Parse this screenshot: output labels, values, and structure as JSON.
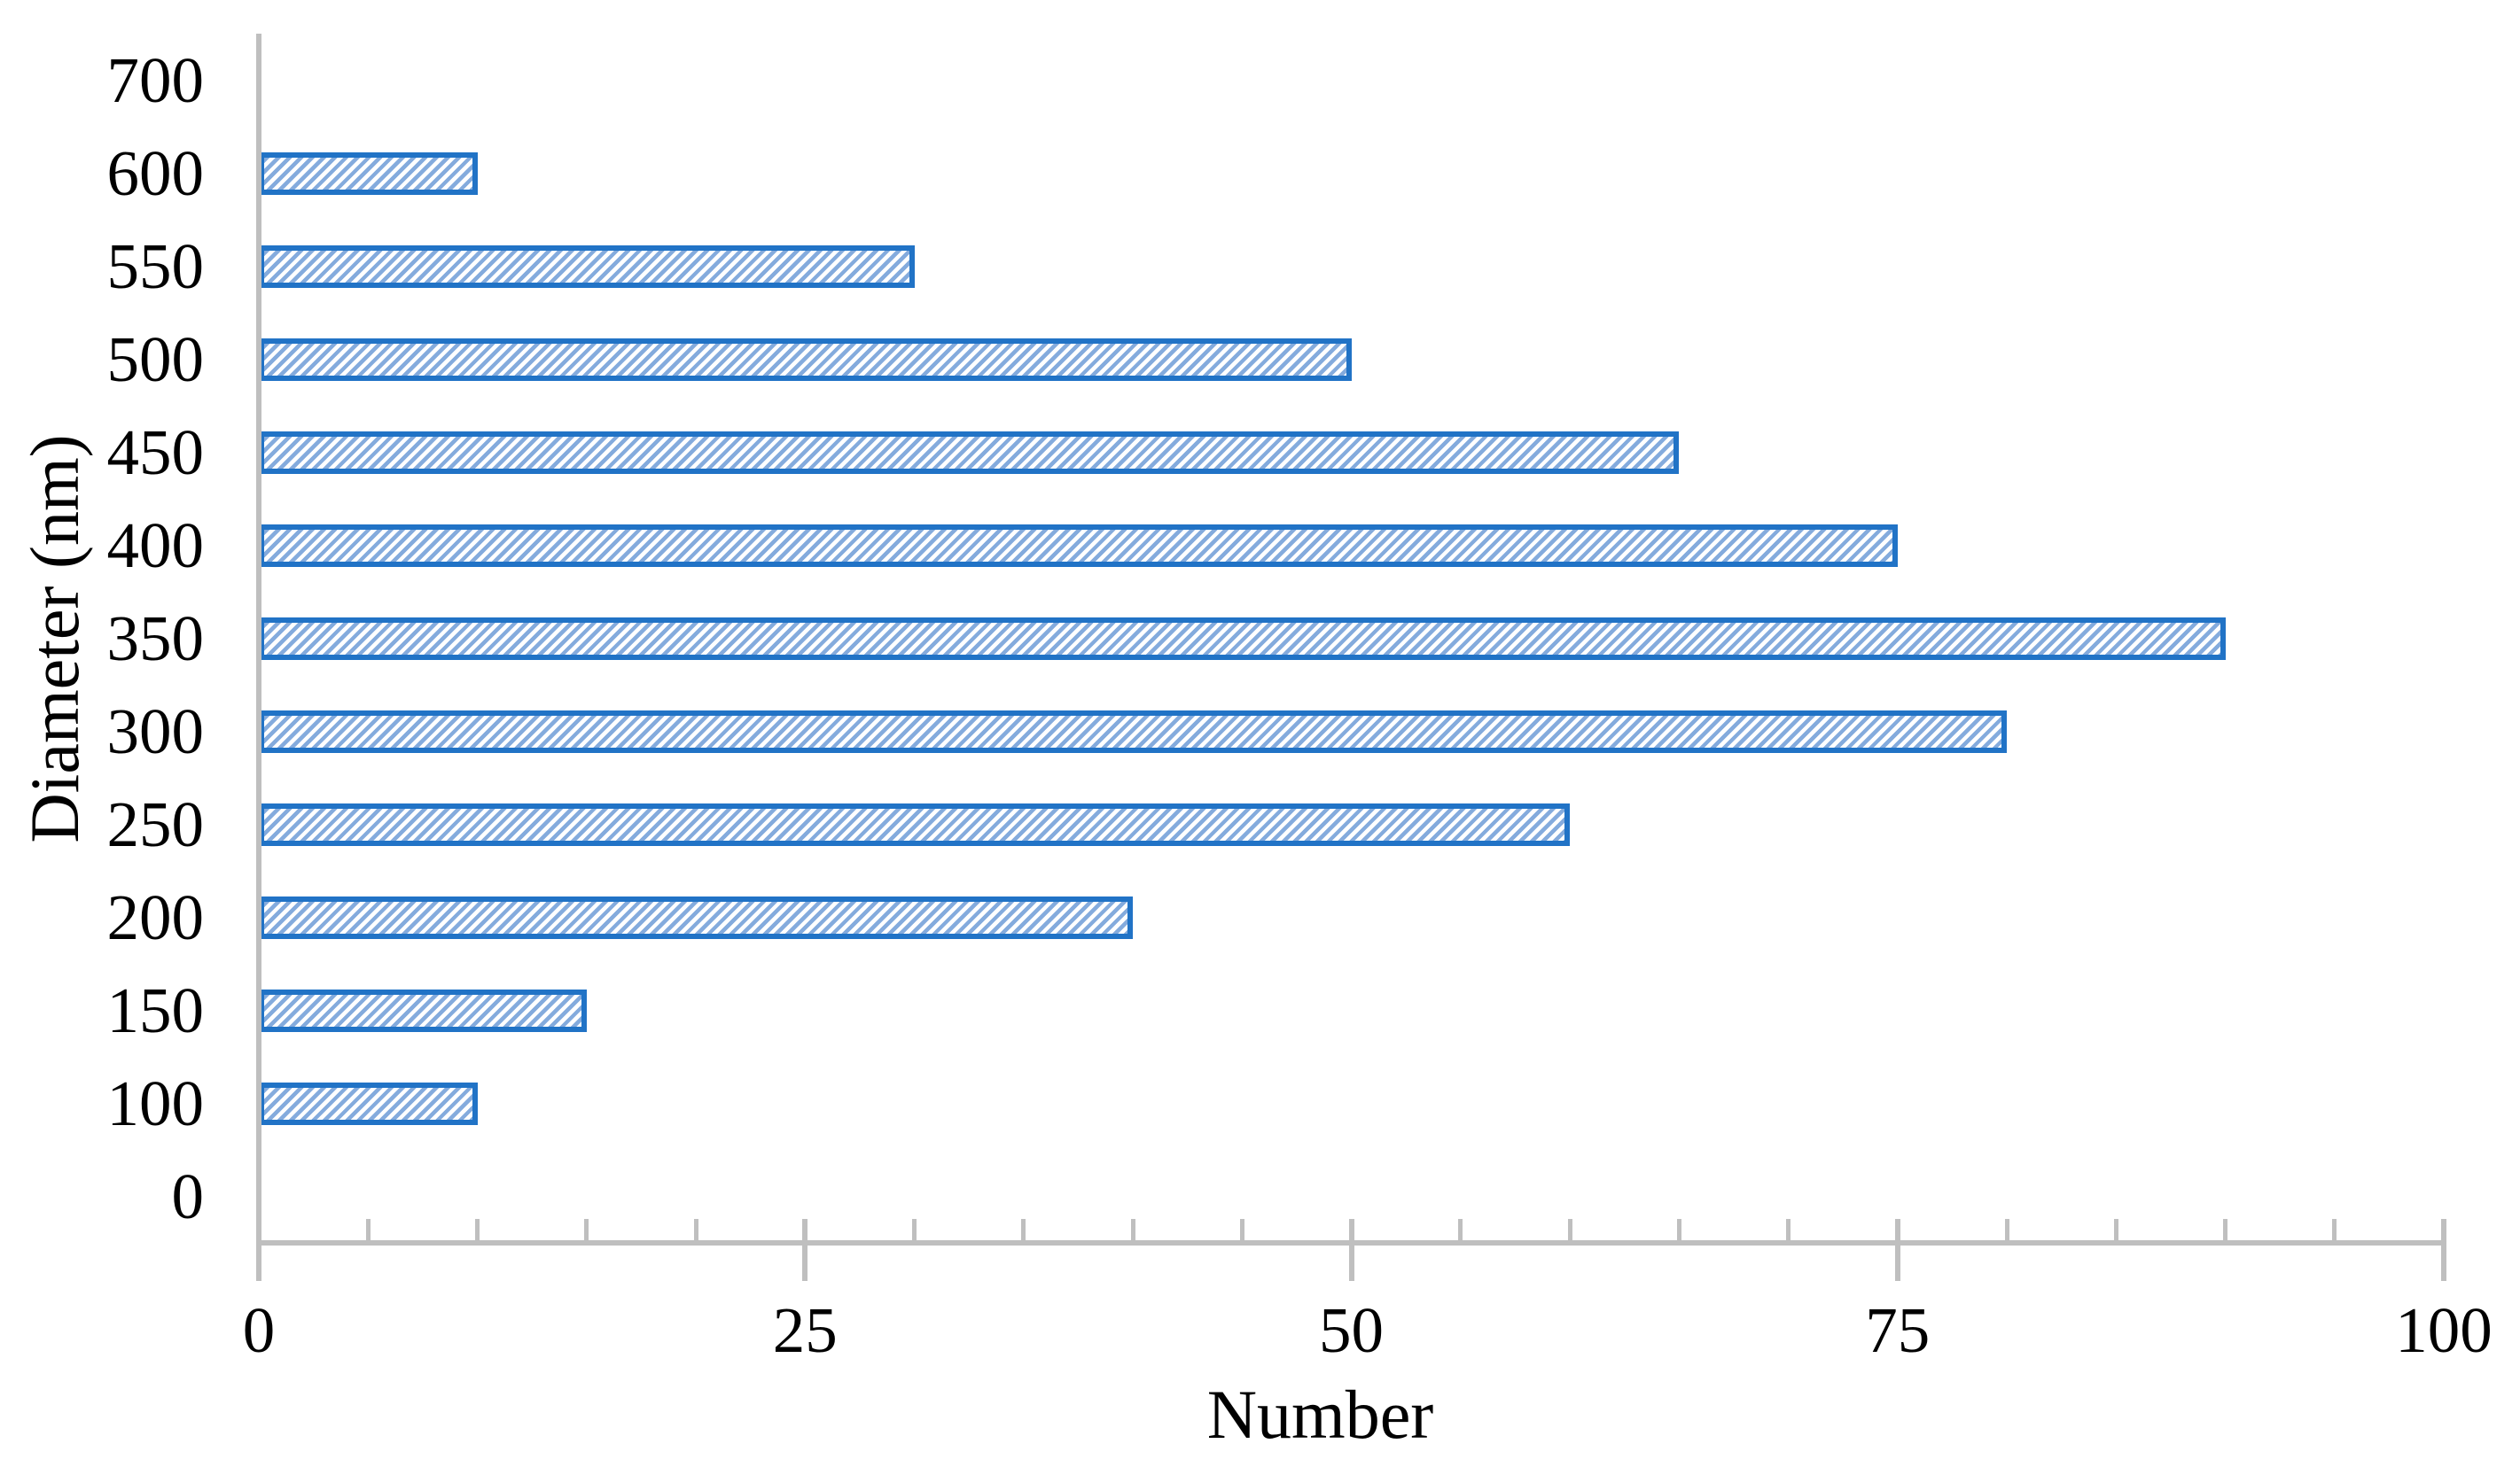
{
  "chart_data": {
    "type": "bar",
    "orientation": "horizontal",
    "title": "",
    "xlabel": "Number",
    "ylabel": "Diameter (nm)",
    "categories": [
      "700",
      "600",
      "550",
      "500",
      "450",
      "400",
      "350",
      "300",
      "250",
      "200",
      "150",
      "100",
      "0"
    ],
    "values": [
      0,
      10,
      30,
      50,
      65,
      75,
      90,
      80,
      60,
      40,
      15,
      10,
      0
    ],
    "xlim": [
      0,
      100
    ],
    "x_major_ticks": [
      "0",
      "25",
      "50",
      "75",
      "100"
    ],
    "x_major_tick_values": [
      0,
      25,
      50,
      75,
      100
    ],
    "x_minor_tick_step": 5,
    "grid": false,
    "legend": false,
    "bar_fill_pattern": "wide-upward-diagonal-stripes",
    "colors": {
      "bar_border": "#2173C6",
      "bar_stripe": "#84ABDD",
      "bar_background": "#FFFFFF",
      "axis": "#BFBFBF",
      "text": "#000000",
      "background": "#FFFFFF"
    }
  }
}
